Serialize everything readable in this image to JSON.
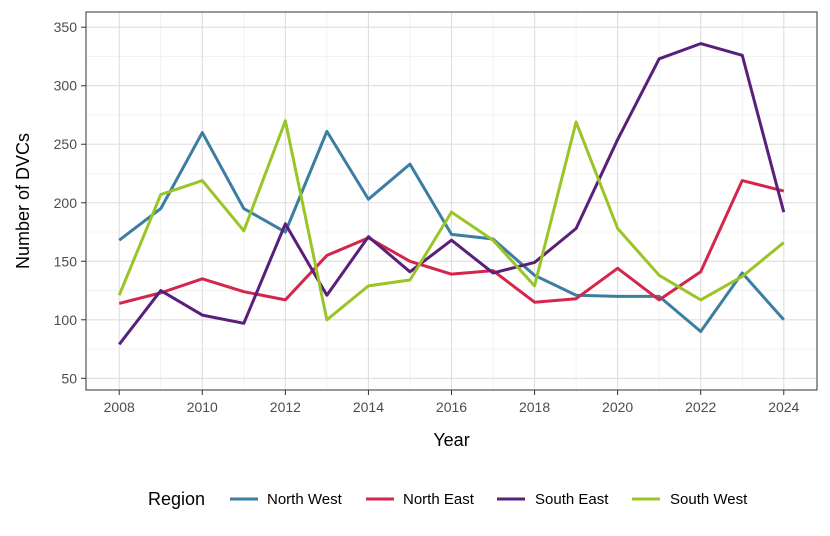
{
  "chart_data": {
    "type": "line",
    "xlabel": "Year",
    "ylabel": "Number of DVCs",
    "xlim": [
      2007.2,
      2024.8
    ],
    "ylim": [
      40,
      363
    ],
    "x_ticks": [
      2008,
      2010,
      2012,
      2014,
      2016,
      2018,
      2020,
      2022,
      2024
    ],
    "y_ticks": [
      50,
      100,
      150,
      200,
      250,
      300,
      350
    ],
    "grid": true,
    "legend": {
      "title": "Region",
      "placement": "bottom"
    },
    "x": [
      2008,
      2009,
      2010,
      2011,
      2012,
      2013,
      2014,
      2015,
      2016,
      2017,
      2018,
      2019,
      2020,
      2021,
      2022,
      2023,
      2024
    ],
    "series": [
      {
        "name": "North West",
        "color": "#3b7ea1",
        "values": [
          168,
          195,
          260,
          195,
          175,
          261,
          203,
          233,
          173,
          169,
          138,
          121,
          120,
          120,
          90,
          140,
          100
        ]
      },
      {
        "name": "North East",
        "color": "#d4264b",
        "values": [
          114,
          123,
          135,
          124,
          117,
          155,
          170,
          150,
          139,
          142,
          115,
          118,
          144,
          117,
          141,
          219,
          210
        ]
      },
      {
        "name": "South East",
        "color": "#5a1f7a",
        "values": [
          79,
          125,
          104,
          97,
          182,
          121,
          171,
          141,
          168,
          140,
          149,
          178,
          254,
          323,
          336,
          326,
          192
        ]
      },
      {
        "name": "South West",
        "color": "#9ac527",
        "values": [
          121,
          207,
          219,
          176,
          270,
          100,
          129,
          134,
          192,
          168,
          129,
          269,
          178,
          138,
          117,
          137,
          166
        ]
      }
    ]
  }
}
